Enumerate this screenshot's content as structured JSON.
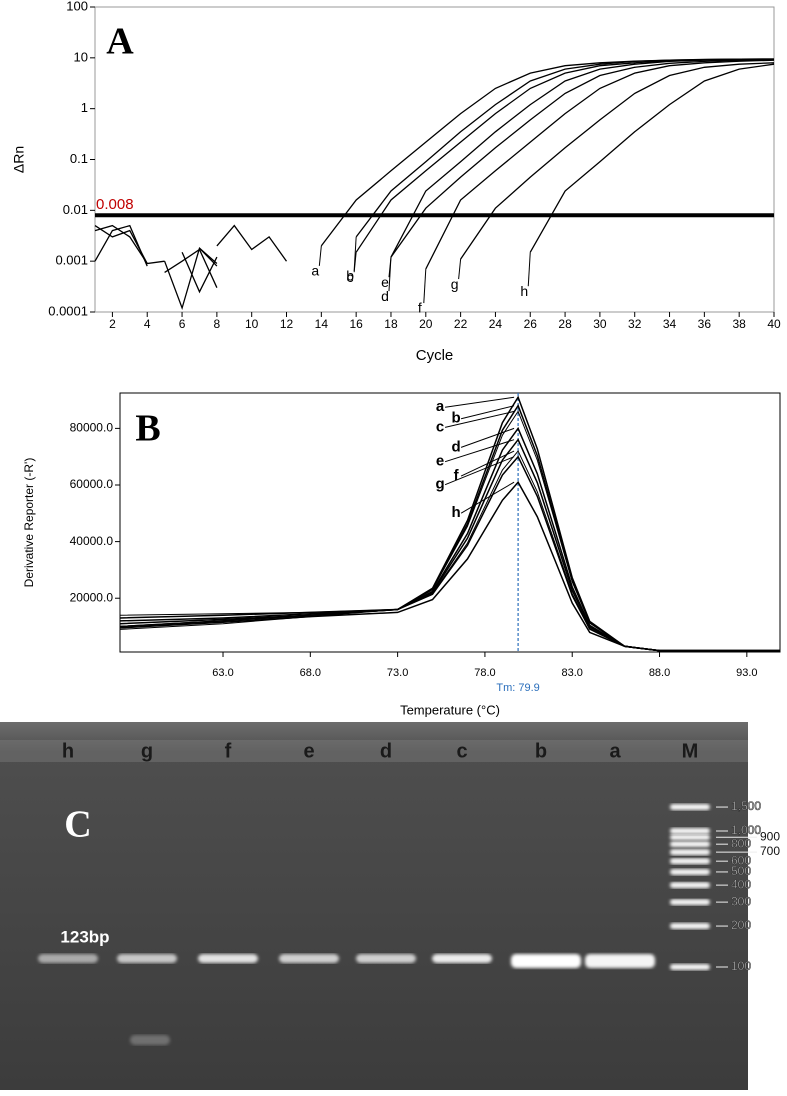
{
  "chart_data": [
    {
      "type": "line",
      "panel_label": "A",
      "x_label": "Cycle",
      "y_label": "ΔRn",
      "log_y": true,
      "xlim": [
        1,
        40
      ],
      "xticks": [
        2,
        4,
        6,
        8,
        10,
        12,
        14,
        16,
        18,
        20,
        22,
        24,
        26,
        28,
        30,
        32,
        34,
        36,
        38,
        40
      ],
      "ylim": [
        0.0001,
        100
      ],
      "yticks": [
        0.0001,
        0.001,
        0.01,
        0.1,
        1,
        10,
        100
      ],
      "threshold": 0.008,
      "threshold_color": "#c00000",
      "x": [
        1,
        2,
        3,
        4,
        5,
        6,
        7,
        8,
        9,
        10,
        11,
        12,
        14,
        16,
        18,
        20,
        22,
        24,
        26,
        28,
        30,
        32,
        34,
        36,
        38,
        40
      ],
      "series": [
        {
          "name": "a",
          "color": "#000000",
          "values": [
            0.001,
            0.004,
            0.005,
            0.0008,
            null,
            null,
            null,
            null,
            null,
            null,
            null,
            null,
            0.002,
            0.016,
            0.06,
            0.22,
            0.8,
            2.5,
            5,
            7,
            8,
            8.6,
            9,
            9.2,
            9.3,
            9.4
          ]
        },
        {
          "name": "b",
          "color": "#000000",
          "values": [
            0.004,
            0.005,
            0.003,
            0.0009,
            0.001,
            null,
            null,
            null,
            null,
            null,
            null,
            null,
            null,
            0.003,
            0.024,
            0.09,
            0.35,
            1.2,
            3.5,
            6,
            7.5,
            8.5,
            9,
            9.3,
            9.4,
            9.5
          ]
        },
        {
          "name": "c",
          "color": "#000000",
          "values": [
            0.005,
            0.003,
            0.004,
            0.0009,
            null,
            null,
            null,
            null,
            null,
            null,
            null,
            null,
            null,
            0.0015,
            0.016,
            0.06,
            0.22,
            0.8,
            2.5,
            5,
            7,
            8,
            8.8,
            9.2,
            9.4,
            9.5
          ]
        },
        {
          "name": "d",
          "color": "#000000",
          "values": [
            null,
            null,
            null,
            null,
            0.001,
            0.00012,
            0.0018,
            0.0009,
            null,
            null,
            null,
            null,
            null,
            null,
            0.0012,
            0.024,
            0.09,
            0.35,
            1.2,
            3.5,
            6,
            7.5,
            8.5,
            9,
            9.2,
            9.3
          ]
        },
        {
          "name": "e",
          "color": "#000000",
          "values": [
            null,
            null,
            null,
            null,
            0.0006,
            0.001,
            0.0017,
            0.0003,
            null,
            null,
            null,
            null,
            null,
            null,
            0.0012,
            0.011,
            0.045,
            0.17,
            0.6,
            2,
            4.5,
            6.5,
            7.8,
            8.5,
            9,
            9.2
          ]
        },
        {
          "name": "f",
          "color": "#000000",
          "values": [
            null,
            null,
            null,
            null,
            null,
            null,
            0.0018,
            0.0008,
            null,
            null,
            null,
            null,
            null,
            null,
            null,
            0.0007,
            0.016,
            0.06,
            0.22,
            0.8,
            2.5,
            5,
            7,
            8,
            8.6,
            9
          ]
        },
        {
          "name": "g",
          "color": "#000000",
          "values": [
            null,
            null,
            null,
            null,
            null,
            null,
            null,
            0.002,
            0.005,
            0.0017,
            0.003,
            0.001,
            null,
            null,
            null,
            null,
            0.0011,
            0.011,
            0.045,
            0.17,
            0.6,
            2,
            4.5,
            6.5,
            7.5,
            8
          ]
        },
        {
          "name": "h",
          "color": "#000000",
          "values": [
            null,
            null,
            null,
            null,
            null,
            0.0015,
            0.00025,
            0.0012,
            null,
            null,
            null,
            null,
            null,
            null,
            null,
            null,
            null,
            null,
            0.0015,
            0.024,
            0.09,
            0.35,
            1.2,
            3.5,
            6,
            7.5
          ]
        }
      ]
    },
    {
      "type": "line",
      "panel_label": "B",
      "x_label": "Temperature (°C)",
      "y_label": "Derivative Reporter (-R')",
      "xlim": [
        57.1,
        94.9
      ],
      "xticks": [
        {
          "value": 63,
          "label": "63.0"
        },
        {
          "value": 68,
          "label": "68.0"
        },
        {
          "value": 73,
          "label": "73.0"
        },
        {
          "value": 78,
          "label": "78.0"
        },
        {
          "value": 83,
          "label": "83.0"
        },
        {
          "value": 88,
          "label": "88.0"
        },
        {
          "value": 93,
          "label": "93.0"
        }
      ],
      "ylim": [
        1000,
        92500
      ],
      "yticks": [
        {
          "value": 20000,
          "label": "20000.0"
        },
        {
          "value": 40000,
          "label": "40000.0"
        },
        {
          "value": 60000,
          "label": "60000.0"
        },
        {
          "value": 80000,
          "label": "80000.0"
        }
      ],
      "tm": {
        "value": 79.9,
        "label": "Tm: 79.9"
      },
      "tm_color": "#2a6ebb",
      "x": [
        57.1,
        63,
        68,
        73,
        75,
        77,
        78,
        79,
        79.9,
        81,
        82,
        83,
        84,
        86,
        88,
        94.9
      ],
      "series": [
        {
          "name": "a",
          "color": "#000000",
          "values": [
            10000,
            12000,
            14000,
            16000,
            23500,
            47500,
            64750,
            82000,
            91000,
            72800,
            50050,
            27300,
            11830,
            3000,
            1500,
            1500
          ]
        },
        {
          "name": "b",
          "color": "#000000",
          "values": [
            13000,
            14000,
            15000,
            16000,
            23200,
            46240,
            62800,
            79360,
            88000,
            70400,
            48400,
            26400,
            11440,
            3000,
            1500,
            1500
          ]
        },
        {
          "name": "c",
          "color": "#000000",
          "values": [
            9000,
            11000,
            13500,
            16000,
            23000,
            45400,
            61500,
            77600,
            86000,
            68800,
            47300,
            25800,
            11180,
            3000,
            1500,
            1500
          ]
        },
        {
          "name": "d",
          "color": "#000000",
          "values": [
            12000,
            13000,
            14500,
            16000,
            22400,
            42880,
            57600,
            72320,
            80000,
            64000,
            44000,
            24000,
            10400,
            3000,
            1500,
            1500
          ]
        },
        {
          "name": "e",
          "color": "#000000",
          "values": [
            10000,
            12000,
            14000,
            16000,
            22000,
            41200,
            55000,
            68800,
            76000,
            60800,
            41800,
            22800,
            9880,
            3000,
            1500,
            1500
          ]
        },
        {
          "name": "f",
          "color": "#000000",
          "values": [
            14000,
            14500,
            15000,
            16000,
            21600,
            39520,
            52400,
            65280,
            72000,
            57600,
            39600,
            21600,
            9360,
            3000,
            1500,
            1500
          ]
        },
        {
          "name": "g",
          "color": "#000000",
          "values": [
            11000,
            12500,
            14000,
            16000,
            21400,
            38680,
            51100,
            63520,
            70000,
            56000,
            38500,
            21000,
            9100,
            3000,
            1500,
            1500
          ]
        },
        {
          "name": "h",
          "color": "#000000",
          "values": [
            9500,
            11500,
            13500,
            15000,
            19500,
            33900,
            44250,
            54600,
            61000,
            48800,
            33550,
            18300,
            7930,
            3000,
            1500,
            1500
          ]
        }
      ]
    }
  ],
  "gel": {
    "panel_label": "C",
    "lanes": [
      "h",
      "g",
      "f",
      "e",
      "d",
      "c",
      "b",
      "a",
      "M"
    ],
    "band_label": "123bp",
    "ladder": [
      {
        "value": 1500,
        "label": "1,500"
      },
      {
        "value": 1000,
        "label": "1,000"
      },
      900,
      800,
      700,
      600,
      500,
      400,
      300,
      200,
      100
    ]
  }
}
